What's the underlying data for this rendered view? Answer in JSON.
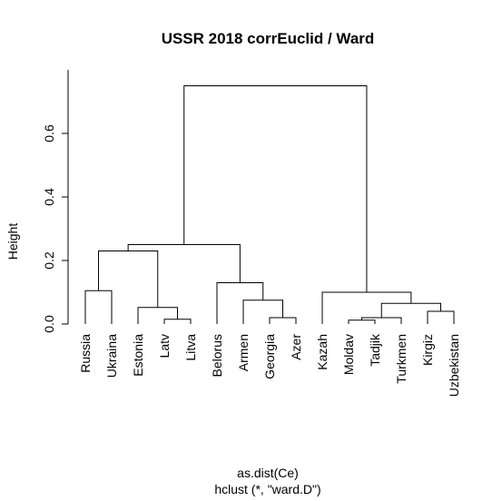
{
  "chart_data": {
    "type": "dendrogram",
    "title": "USSR 2018 corrEuclid / Ward",
    "ylabel": "Height",
    "xlabel": "as.dist(Ce)",
    "sublabel": "hclust (*, \"ward.D\")",
    "ylim": [
      0,
      0.78
    ],
    "yticks": [
      0.0,
      0.2,
      0.4,
      0.6
    ],
    "ytick_labels": [
      "0.0",
      "0.2",
      "0.4",
      "0.6"
    ],
    "leaves": [
      "Russia",
      "Ukraina",
      "Estonia",
      "Latv",
      "Litva",
      "Belorus",
      "Armen",
      "Georgia",
      "Azer",
      "Kazah",
      "Moldav",
      "Tadjik",
      "Turkmen",
      "Kirgiz",
      "Uzbekistan"
    ],
    "merges": [
      {
        "a": "L:Russia",
        "b": "L:Ukraina",
        "height": 0.105
      },
      {
        "a": "L:Latv",
        "b": "L:Litva",
        "height": 0.015
      },
      {
        "a": "L:Estonia",
        "b": "N:1",
        "height": 0.052
      },
      {
        "a": "N:0",
        "b": "N:2",
        "height": 0.23
      },
      {
        "a": "L:Georgia",
        "b": "L:Azer",
        "height": 0.02
      },
      {
        "a": "L:Armen",
        "b": "N:4",
        "height": 0.075
      },
      {
        "a": "L:Belorus",
        "b": "N:5",
        "height": 0.13
      },
      {
        "a": "N:3",
        "b": "N:6",
        "height": 0.25
      },
      {
        "a": "L:Moldav",
        "b": "L:Tadjik",
        "height": 0.012
      },
      {
        "a": "N:8",
        "b": "L:Turkmen",
        "height": 0.02
      },
      {
        "a": "L:Kirgiz",
        "b": "L:Uzbekistan",
        "height": 0.04
      },
      {
        "a": "N:9",
        "b": "N:10",
        "height": 0.065
      },
      {
        "a": "L:Kazah",
        "b": "N:11",
        "height": 0.1
      },
      {
        "a": "N:7",
        "b": "N:12",
        "height": 0.75
      }
    ]
  }
}
